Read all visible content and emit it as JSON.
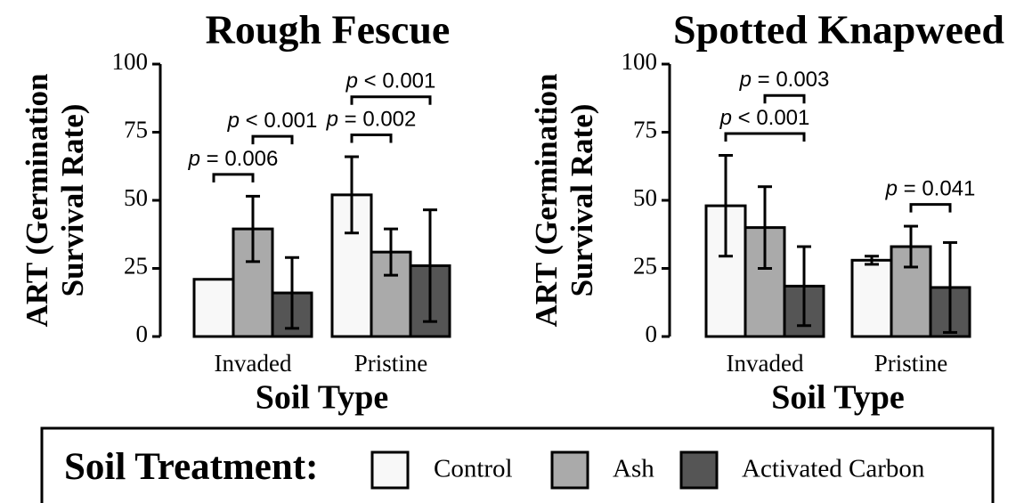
{
  "chart_data": [
    {
      "type": "bar",
      "title": "Rough Fescue",
      "ylabel": [
        "ART (Germination",
        "Survival Rate)"
      ],
      "xlabel": "Soil Type",
      "categories": [
        "Invaded",
        "Pristine"
      ],
      "series": [
        {
          "values": [
            21,
            52
          ],
          "errors": [
            null,
            14
          ]
        },
        {
          "values": [
            39.5,
            31
          ],
          "errors": [
            12,
            8.5
          ]
        },
        {
          "values": [
            16,
            26
          ],
          "errors": [
            13,
            20.5
          ]
        }
      ],
      "ylim": [
        0,
        100
      ],
      "yticks": [
        0,
        25,
        50,
        75,
        100
      ],
      "annotations": [
        {
          "text": "p = 0.006",
          "category": 0,
          "from": 0,
          "to": 1
        },
        {
          "text": "p < 0.001",
          "category": 0,
          "from": 1,
          "to": 2
        },
        {
          "text": "p = 0.002",
          "category": 1,
          "from": 0,
          "to": 1
        },
        {
          "text": "p < 0.001",
          "category": 1,
          "from": 0,
          "to": 2
        }
      ]
    },
    {
      "type": "bar",
      "title": "Spotted Knapweed",
      "ylabel": [
        "ART (Germination",
        "Survival Rate)"
      ],
      "xlabel": "Soil Type",
      "categories": [
        "Invaded",
        "Pristine"
      ],
      "series": [
        {
          "values": [
            48,
            28
          ],
          "errors": [
            18.5,
            1.5
          ]
        },
        {
          "values": [
            40,
            33
          ],
          "errors": [
            15,
            7.5
          ]
        },
        {
          "values": [
            18.5,
            18
          ],
          "errors": [
            14.5,
            16.5
          ]
        }
      ],
      "ylim": [
        0,
        100
      ],
      "yticks": [
        0,
        25,
        50,
        75,
        100
      ],
      "annotations": [
        {
          "text": "p < 0.001",
          "category": 0,
          "from": 0,
          "to": 2
        },
        {
          "text": "p = 0.003",
          "category": 0,
          "from": 1,
          "to": 2
        },
        {
          "text": "p = 0.041",
          "category": 1,
          "from": 1,
          "to": 2
        }
      ]
    }
  ],
  "legend": {
    "title": "Soil Treatment:",
    "names": [
      "Control",
      "Ash",
      "Activated Carbon"
    ],
    "colors": [
      "#f8f8f8",
      "#aaaaaa",
      "#555555"
    ]
  }
}
